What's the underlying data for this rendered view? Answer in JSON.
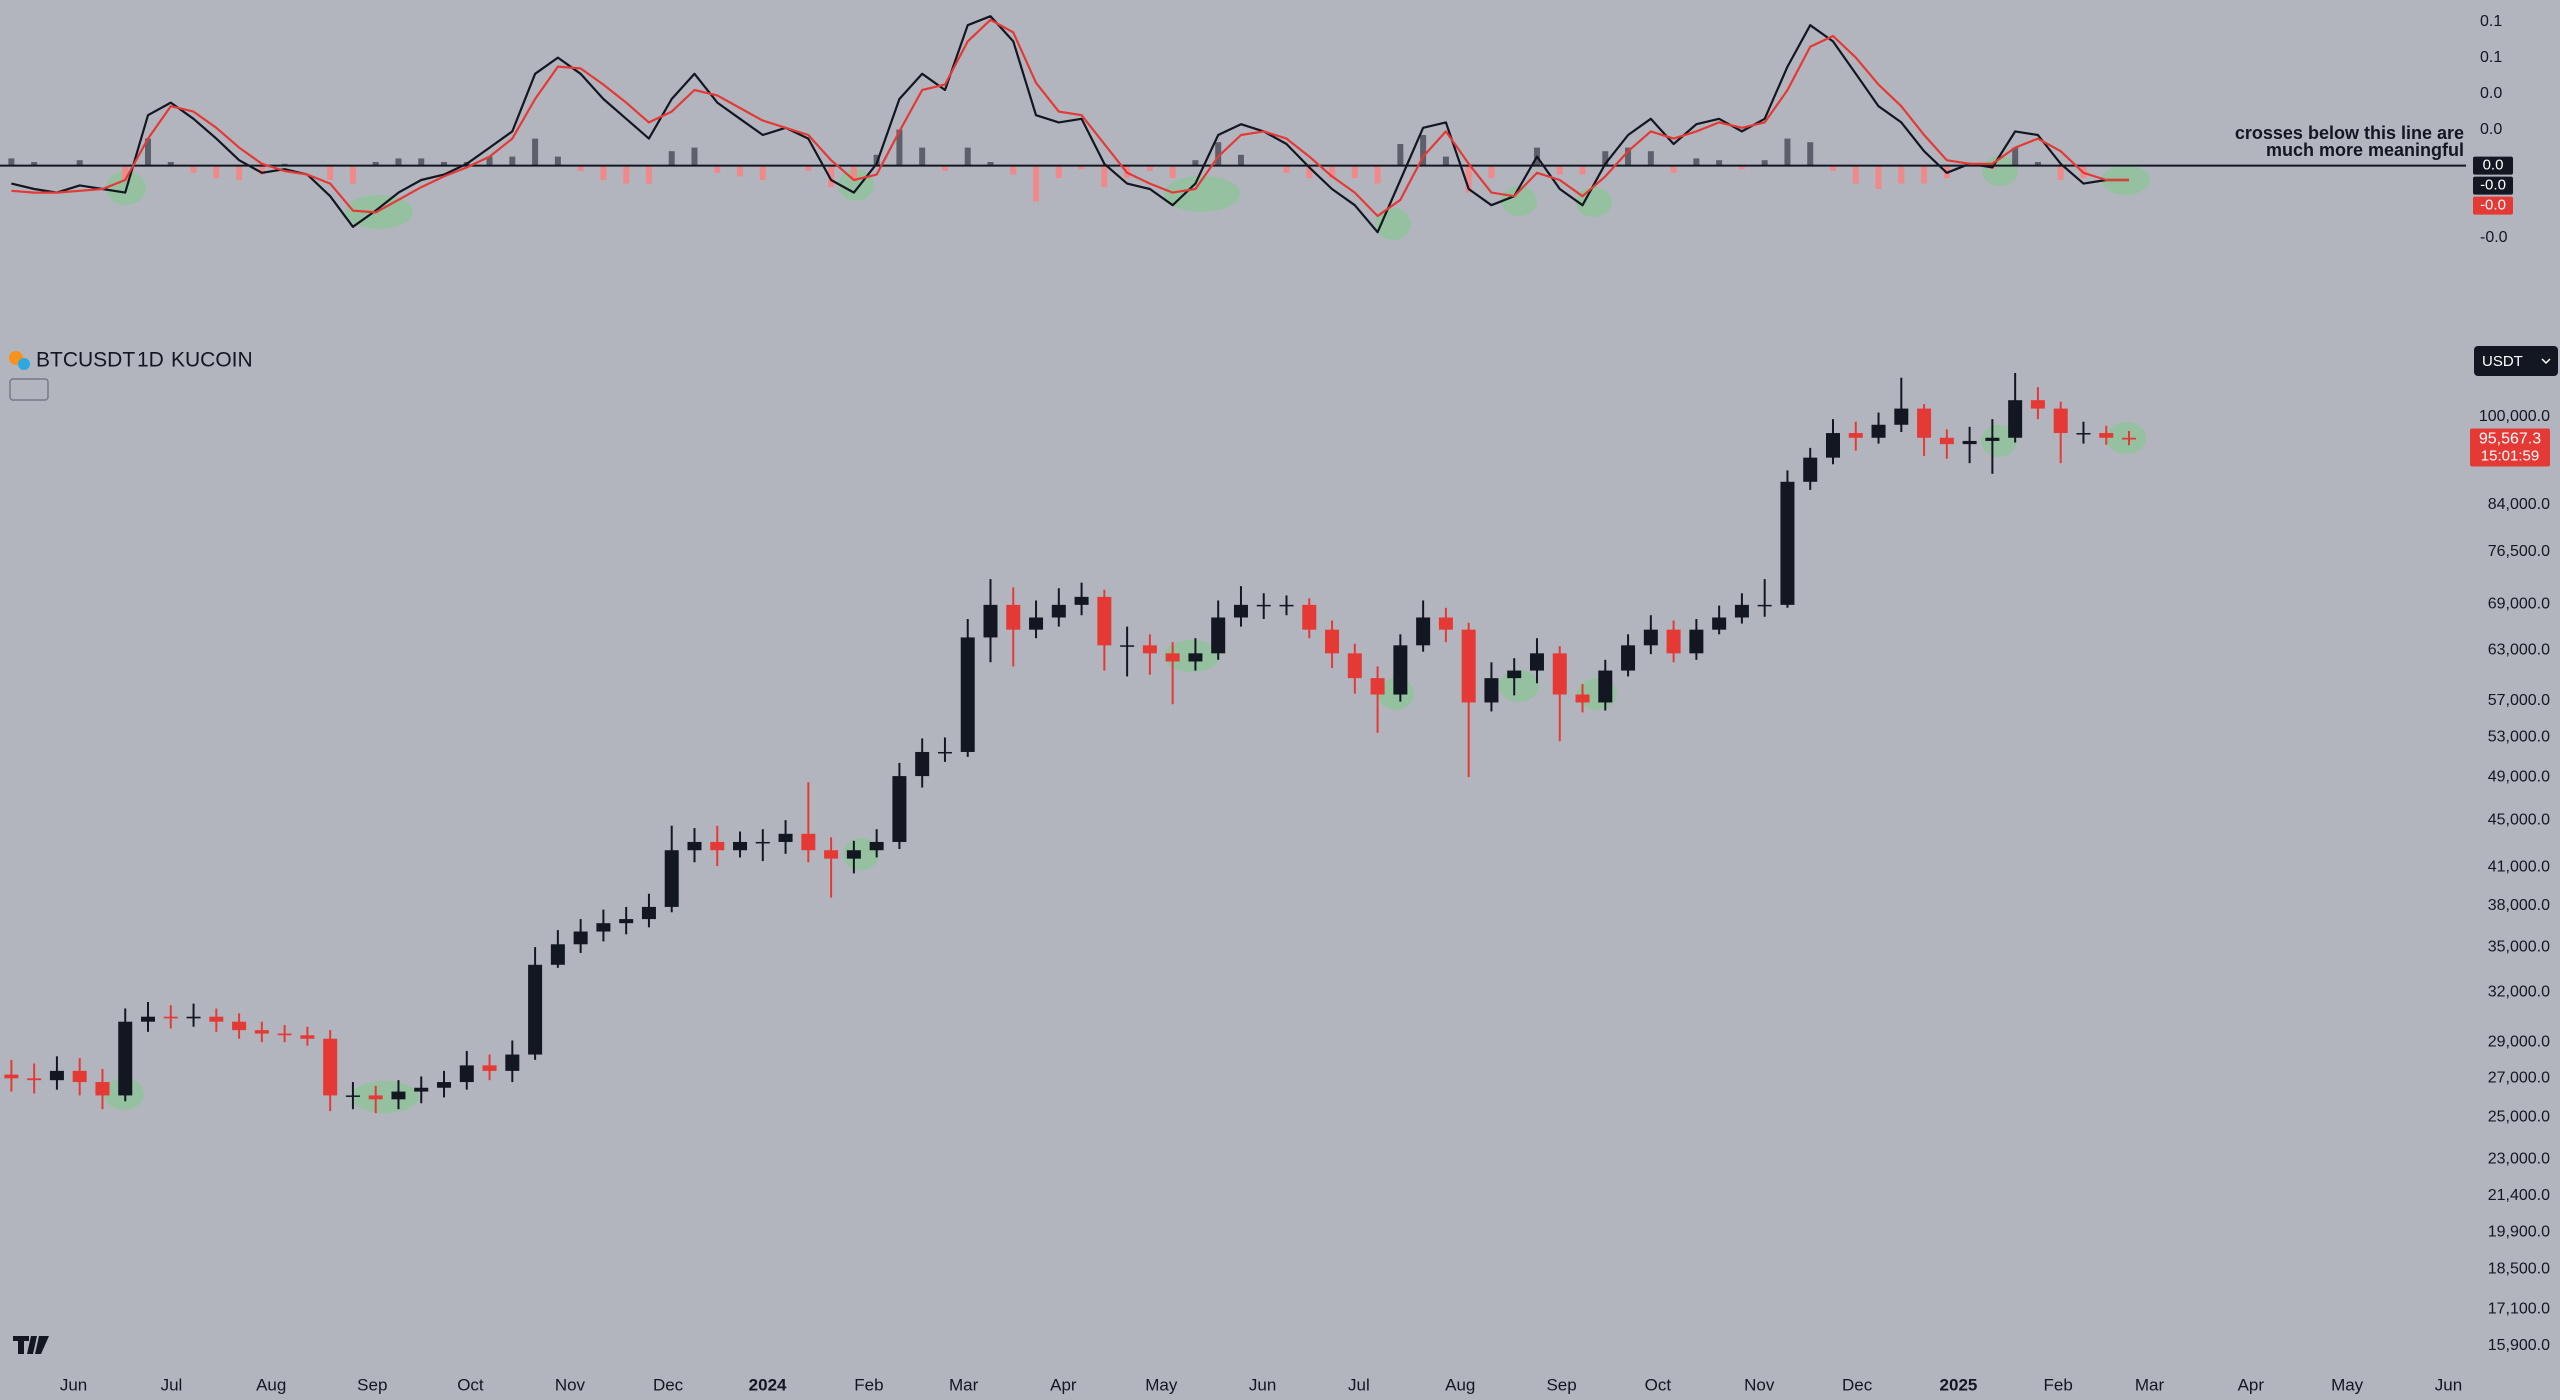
{
  "chart_data": [
    {
      "type": "line",
      "xlim": [
        -0.5,
        107.8
      ],
      "ylim": [
        -0.058,
        0.092
      ],
      "yticks": [
        {
          "value": 0.08,
          "label": "0.1"
        },
        {
          "value": 0.06,
          "label": "0.1"
        },
        {
          "value": 0.04,
          "label": "0.0"
        },
        {
          "value": 0.02,
          "label": "0.0"
        },
        {
          "value": -0.04,
          "label": "-0.0"
        }
      ],
      "level": 0,
      "level_label": "0.0",
      "annotation": [
        "crosses below this line are",
        "much more meaningful"
      ],
      "series": [
        {
          "color": "#131722",
          "last_value_label": "-0.0",
          "values": [
            -0.01,
            -0.013,
            -0.015,
            -0.011,
            -0.013,
            -0.015,
            0.028,
            0.035,
            0.026,
            0.015,
            0.003,
            -0.004,
            -0.002,
            -0.005,
            -0.017,
            -0.034,
            -0.025,
            -0.015,
            -0.008,
            -0.005,
            0.001,
            0.01,
            0.019,
            0.051,
            0.06,
            0.051,
            0.037,
            0.026,
            0.015,
            0.037,
            0.051,
            0.035,
            0.026,
            0.017,
            0.021,
            0.015,
            -0.008,
            -0.015,
            0.001,
            0.037,
            0.051,
            0.042,
            0.078,
            0.083,
            0.069,
            0.028,
            0.024,
            0.026,
            0.001,
            -0.01,
            -0.013,
            -0.022,
            -0.01,
            0.017,
            0.023,
            0.019,
            0.012,
            -0.001,
            -0.013,
            -0.022,
            -0.037,
            -0.008,
            0.021,
            0.024,
            -0.013,
            -0.022,
            -0.017,
            0.005,
            -0.013,
            -0.022,
            0.001,
            0.017,
            0.026,
            0.012,
            0.023,
            0.026,
            0.019,
            0.026,
            0.055,
            0.078,
            0.069,
            0.051,
            0.033,
            0.024,
            0.008,
            -0.004,
            0.001,
            -0.001,
            0.019,
            0.017,
            0.001,
            -0.01,
            -0.008,
            -0.008
          ]
        },
        {
          "color": "#e53935",
          "last_value_label": "-0.0",
          "values": [
            -0.014,
            -0.015,
            -0.015,
            -0.014,
            -0.013,
            -0.008,
            0.015,
            0.033,
            0.03,
            0.021,
            0.01,
            0.001,
            -0.003,
            -0.005,
            -0.01,
            -0.025,
            -0.026,
            -0.019,
            -0.012,
            -0.006,
            -0.001,
            0.005,
            0.015,
            0.037,
            0.055,
            0.054,
            0.045,
            0.035,
            0.024,
            0.03,
            0.042,
            0.039,
            0.032,
            0.025,
            0.021,
            0.017,
            0.003,
            -0.008,
            -0.005,
            0.019,
            0.042,
            0.045,
            0.069,
            0.081,
            0.074,
            0.046,
            0.03,
            0.028,
            0.012,
            -0.004,
            -0.01,
            -0.015,
            -0.013,
            0.005,
            0.017,
            0.019,
            0.015,
            0.005,
            -0.006,
            -0.015,
            -0.028,
            -0.019,
            0.005,
            0.019,
            0.001,
            -0.015,
            -0.017,
            -0.004,
            -0.008,
            -0.017,
            -0.006,
            0.008,
            0.019,
            0.015,
            0.019,
            0.024,
            0.021,
            0.024,
            0.042,
            0.066,
            0.072,
            0.06,
            0.045,
            0.033,
            0.017,
            0.003,
            0.001,
            0.001,
            0.01,
            0.015,
            0.008,
            -0.004,
            -0.008,
            -0.008
          ]
        }
      ],
      "histogram": {
        "colors": [
          "#5d606b",
          "#ef8a8a"
        ],
        "values": [
          0.004,
          0.002,
          0,
          0.003,
          0,
          -0.008,
          0.015,
          0.002,
          -0.004,
          -0.007,
          -0.008,
          -0.005,
          0.001,
          0,
          -0.008,
          -0.01,
          0.002,
          0.004,
          0.004,
          0.002,
          0.002,
          0.005,
          0.005,
          0.015,
          0.005,
          -0.003,
          -0.008,
          -0.01,
          -0.01,
          0.008,
          0.01,
          -0.004,
          -0.006,
          -0.008,
          0,
          -0.003,
          -0.012,
          -0.008,
          0.006,
          0.02,
          0.01,
          -0.003,
          0.01,
          0.002,
          -0.005,
          -0.02,
          -0.007,
          -0.002,
          -0.012,
          -0.007,
          -0.003,
          -0.007,
          0.003,
          0.013,
          0.006,
          0,
          -0.004,
          -0.007,
          -0.007,
          -0.007,
          -0.01,
          0.012,
          0.017,
          0.005,
          -0.015,
          -0.007,
          0,
          0.01,
          -0.005,
          -0.005,
          0.008,
          0.01,
          0.008,
          -0.004,
          0.004,
          0.003,
          -0.002,
          0.003,
          0.015,
          0.013,
          -0.003,
          -0.01,
          -0.013,
          -0.01,
          -0.01,
          -0.007,
          0,
          -0.002,
          0.01,
          0.002,
          -0.008,
          -0.007,
          0,
          0
        ]
      }
    },
    {
      "type": "candlestick",
      "title": "BTCUSDT",
      "interval": "1D",
      "exchange": "KUCOIN",
      "currency": "USDT",
      "last_price_label": "95,567.3",
      "countdown": "15:01:59",
      "colors": {
        "up": "#131722",
        "down": "#e53935"
      },
      "log_scale": true,
      "xlim": [
        -0.5,
        107.8
      ],
      "ylim": [
        15100,
        119400
      ],
      "yticks": [
        {
          "value": 100000,
          "label": "100,000.0"
        },
        {
          "value": 84000,
          "label": "84,000.0"
        },
        {
          "value": 76500,
          "label": "76,500.0"
        },
        {
          "value": 69000,
          "label": "69,000.0"
        },
        {
          "value": 63000,
          "label": "63,000.0"
        },
        {
          "value": 57000,
          "label": "57,000.0"
        },
        {
          "value": 53000,
          "label": "53,000.0"
        },
        {
          "value": 49000,
          "label": "49,000.0"
        },
        {
          "value": 45000,
          "label": "45,000.0"
        },
        {
          "value": 41000,
          "label": "41,000.0"
        },
        {
          "value": 38000,
          "label": "38,000.0"
        },
        {
          "value": 35000,
          "label": "35,000.0"
        },
        {
          "value": 32000,
          "label": "32,000.0"
        },
        {
          "value": 29000,
          "label": "29,000.0"
        },
        {
          "value": 27000,
          "label": "27,000.0"
        },
        {
          "value": 25000,
          "label": "25,000.0"
        },
        {
          "value": 23000,
          "label": "23,000.0"
        },
        {
          "value": 21400,
          "label": "21,400.0"
        },
        {
          "value": 19900,
          "label": "19,900.0"
        },
        {
          "value": 18500,
          "label": "18,500.0"
        },
        {
          "value": 17100,
          "label": "17,100.0"
        },
        {
          "value": 15900,
          "label": "15,900.0"
        }
      ],
      "xticks": [
        {
          "value": 2.73,
          "label": "Jun"
        },
        {
          "value": 7.03,
          "label": "Jul"
        },
        {
          "value": 11.41,
          "label": "Aug"
        },
        {
          "value": 15.85,
          "label": "Sep"
        },
        {
          "value": 20.16,
          "label": "Oct"
        },
        {
          "value": 24.53,
          "label": "Nov"
        },
        {
          "value": 28.84,
          "label": "Dec"
        },
        {
          "value": 33.21,
          "label": "2024"
        },
        {
          "value": 37.66,
          "label": "Feb"
        },
        {
          "value": 41.82,
          "label": "Mar"
        },
        {
          "value": 46.2,
          "label": "Apr"
        },
        {
          "value": 50.5,
          "label": "May"
        },
        {
          "value": 54.95,
          "label": "Jun"
        },
        {
          "value": 59.18,
          "label": "Jul"
        },
        {
          "value": 63.63,
          "label": "Aug"
        },
        {
          "value": 68.08,
          "label": "Sep"
        },
        {
          "value": 72.31,
          "label": "Oct"
        },
        {
          "value": 76.76,
          "label": "Nov"
        },
        {
          "value": 81.06,
          "label": "Dec"
        },
        {
          "value": 85.51,
          "label": "2025"
        },
        {
          "value": 89.89,
          "label": "Feb"
        },
        {
          "value": 93.9,
          "label": "Mar"
        },
        {
          "value": 98.35,
          "label": "Apr"
        },
        {
          "value": 102.58,
          "label": "May"
        },
        {
          "value": 107.03,
          "label": "Jun"
        }
      ],
      "open": [
        27200,
        27000,
        26900,
        27400,
        26800,
        26100,
        30200,
        30500,
        30400,
        30500,
        30200,
        29700,
        29500,
        29400,
        29200,
        26100,
        26100,
        25900,
        26300,
        26500,
        26800,
        27700,
        27400,
        28300,
        33800,
        35200,
        36100,
        36700,
        37000,
        37900,
        42400,
        43100,
        42400,
        43100,
        43100,
        43800,
        42400,
        41700,
        42400,
        43100,
        49100,
        51500,
        51500,
        64600,
        68900,
        65600,
        67200,
        68900,
        70000,
        63600,
        63600,
        62600,
        61600,
        62600,
        67200,
        68900,
        68900,
        68900,
        65600,
        62600,
        59600,
        57700,
        63600,
        67200,
        65600,
        56800,
        59600,
        60500,
        62600,
        57700,
        56800,
        60500,
        63600,
        65600,
        62600,
        65600,
        67200,
        68900,
        68900,
        87900,
        92200,
        96800,
        95900,
        98400,
        101600,
        95900,
        94700,
        95300,
        95900,
        103300,
        101600,
        96800,
        96800,
        95900
      ],
      "high": [
        28000,
        27800,
        28200,
        28100,
        27500,
        31000,
        31400,
        31200,
        31300,
        31000,
        30700,
        30200,
        30000,
        29900,
        29700,
        26800,
        26600,
        26900,
        27100,
        27400,
        28500,
        28300,
        29100,
        35000,
        36200,
        37000,
        37700,
        37900,
        38900,
        44500,
        44300,
        44500,
        44000,
        44200,
        45000,
        48500,
        43500,
        43200,
        44200,
        50400,
        52900,
        53000,
        67000,
        72500,
        71300,
        69500,
        71200,
        72000,
        71000,
        66000,
        65000,
        64000,
        64500,
        69500,
        71500,
        70500,
        70200,
        69800,
        66800,
        63800,
        61000,
        65000,
        69500,
        68500,
        66500,
        61500,
        62000,
        64500,
        63500,
        58900,
        61800,
        65000,
        67500,
        66800,
        67000,
        68800,
        70500,
        72500,
        89900,
        94000,
        99500,
        99000,
        100800,
        108000,
        102500,
        97500,
        98000,
        99500,
        109000,
        106000,
        103000,
        99000,
        98200,
        97200
      ],
      "low": [
        26300,
        26200,
        26400,
        26100,
        25400,
        25800,
        29600,
        29800,
        29900,
        29600,
        29200,
        29000,
        29000,
        28800,
        25300,
        25400,
        25200,
        25400,
        25700,
        26000,
        26400,
        26900,
        26800,
        28000,
        33600,
        34600,
        35400,
        35900,
        36400,
        37500,
        41400,
        41100,
        41800,
        41500,
        42100,
        41400,
        38600,
        40500,
        41800,
        42500,
        48000,
        50500,
        51000,
        61500,
        61000,
        64500,
        66000,
        67500,
        60500,
        59800,
        60000,
        56600,
        60500,
        61800,
        66000,
        67000,
        67500,
        64500,
        60800,
        57800,
        53500,
        56900,
        62800,
        64000,
        49000,
        55800,
        57600,
        59000,
        52600,
        55700,
        55900,
        59800,
        62500,
        61500,
        61800,
        65000,
        66400,
        67300,
        68500,
        86500,
        91000,
        93500,
        94800,
        97000,
        92500,
        92000,
        91200,
        89300,
        95000,
        99500,
        91200,
        94800,
        94600,
        94500
      ],
      "close": [
        27000,
        26900,
        27400,
        26800,
        26100,
        30200,
        30500,
        30400,
        30500,
        30200,
        29700,
        29500,
        29400,
        29200,
        26100,
        26100,
        25900,
        26300,
        26500,
        26800,
        27700,
        27400,
        28300,
        33800,
        35200,
        36100,
        36700,
        37000,
        37900,
        42400,
        43100,
        42400,
        43100,
        43100,
        43800,
        42400,
        41700,
        42400,
        43100,
        49100,
        51500,
        51500,
        64600,
        68900,
        65600,
        67200,
        68900,
        70000,
        63600,
        63600,
        62600,
        61600,
        62600,
        67200,
        68900,
        68900,
        68900,
        65600,
        62600,
        59600,
        57700,
        63600,
        67200,
        65600,
        56800,
        59600,
        60500,
        62600,
        57700,
        56800,
        60500,
        63600,
        65600,
        62600,
        65600,
        67200,
        68900,
        68900,
        87900,
        92200,
        96800,
        95900,
        98400,
        101600,
        95900,
        94700,
        95300,
        95900,
        103300,
        101600,
        96800,
        96800,
        95900,
        95567.3
      ]
    }
  ]
}
